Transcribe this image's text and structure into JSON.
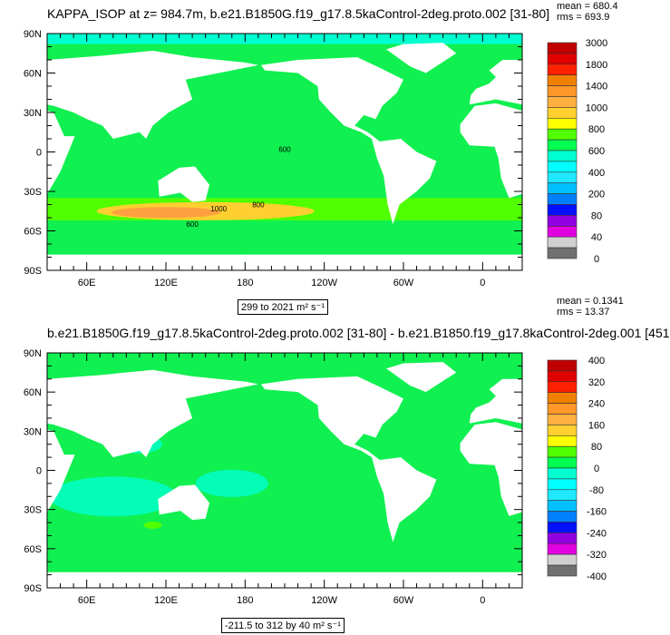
{
  "panels": [
    {
      "title": "KAPPA_ISOP at z= 984.7m, b.e21.B1850G.f19_g17.8.5kaControl-2deg.proto.002 [31-80]",
      "mean": "mean = 680.4",
      "rms": "rms = 693.9",
      "subtitle": "299 to 2021 m² s⁻¹",
      "colorbar_labels": [
        "3000",
        "1800",
        "1400",
        "1000",
        "800",
        "600",
        "400",
        "200",
        "80",
        "40",
        "0"
      ],
      "contour_labels": [
        "600",
        "800",
        "1000",
        "600"
      ]
    },
    {
      "title": "b.e21.B1850G.f19_g17.8.5kaControl-2deg.proto.002 [31-80] - b.e21.B1850.f19_g17.8kaControl-2deg.001 [451",
      "mean": "mean = 0.1341",
      "rms": "rms = 13.37",
      "subtitle": "-211.5 to 312 by 40 m² s⁻¹",
      "colorbar_labels": [
        "400",
        "320",
        "240",
        "160",
        "80",
        "0",
        "-80",
        "-160",
        "-240",
        "-320",
        "-400"
      ]
    }
  ],
  "axes": {
    "lat_labels": [
      "90N",
      "60N",
      "30N",
      "0",
      "30S",
      "60S",
      "90S"
    ],
    "lon_labels": [
      "60E",
      "120E",
      "180",
      "120W",
      "60W",
      "0"
    ]
  },
  "colorbar_colors": [
    "#c00000",
    "#e00000",
    "#ff2000",
    "#f08000",
    "#ff9828",
    "#ffb040",
    "#ffd030",
    "#ffff00",
    "#50ff00",
    "#00ff50",
    "#00ffd0",
    "#00ffff",
    "#20e8ff",
    "#00c0ff",
    "#0080ff",
    "#0010ff",
    "#9000e0",
    "#e000e0",
    "#d0d0d0",
    "#707070"
  ],
  "colors": {
    "ocean_top": "#10f050",
    "ocean_bottom_base": "#10f050",
    "ocean_bottom_alt": "#00ffd0"
  }
}
